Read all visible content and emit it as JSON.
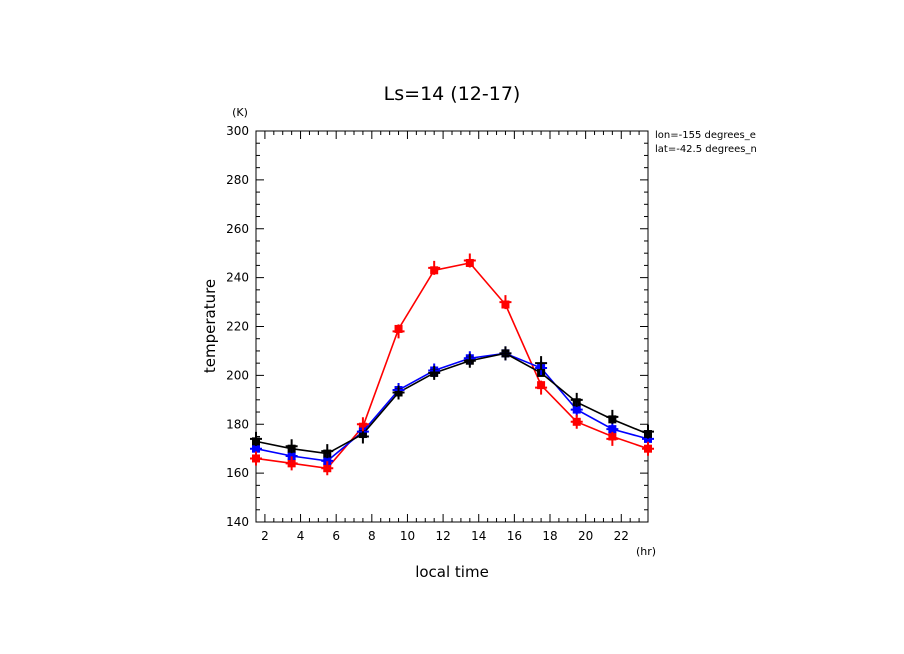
{
  "chart_data": {
    "type": "line",
    "title": "Ls=14 (12-17)",
    "xlabel": "local time",
    "ylabel": "temperature",
    "x_unit": "(hr)",
    "y_unit": "(K)",
    "xlim": [
      1.5,
      23.5
    ],
    "ylim": [
      140,
      300
    ],
    "x_ticks": [
      2,
      4,
      6,
      8,
      10,
      12,
      14,
      16,
      18,
      20,
      22
    ],
    "y_ticks": [
      140,
      160,
      180,
      200,
      220,
      240,
      260,
      280,
      300
    ],
    "info_lines": [
      "lon=-155 degrees_e",
      "lat=-42.5 degrees_n"
    ],
    "grid": false,
    "x": [
      1.5,
      3.5,
      5.5,
      7.5,
      9.5,
      11.5,
      13.5,
      15.5,
      17.5,
      19.5,
      21.5,
      23.5
    ],
    "series": [
      {
        "color": "#ff0000",
        "line": true,
        "marker": "square",
        "values": [
          166,
          164,
          162,
          179,
          219,
          243,
          246,
          229,
          196,
          181,
          175,
          170
        ]
      },
      {
        "color": "#0000ff",
        "line": true,
        "marker": "square",
        "values": [
          170,
          167,
          165,
          177,
          194,
          202,
          207,
          209,
          203,
          186,
          178,
          174
        ]
      },
      {
        "color": "#000000",
        "line": true,
        "marker": "square",
        "values": [
          173,
          170,
          168,
          176,
          193,
          201,
          206,
          209,
          201,
          189,
          182,
          176
        ]
      },
      {
        "color": "#0000ff",
        "line": false,
        "marker": "plus",
        "values": [
          170,
          167,
          165,
          177,
          194,
          202,
          207,
          209,
          203,
          186,
          178,
          174
        ]
      },
      {
        "color": "#000000",
        "line": false,
        "marker": "plus",
        "values": [
          174,
          171,
          169,
          175,
          193,
          201,
          206,
          209,
          205,
          190,
          183,
          177
        ]
      },
      {
        "color": "#ff0000",
        "line": false,
        "marker": "plus",
        "values": [
          166,
          164,
          162,
          180,
          218,
          244,
          247,
          230,
          195,
          181,
          174,
          170
        ]
      }
    ]
  }
}
